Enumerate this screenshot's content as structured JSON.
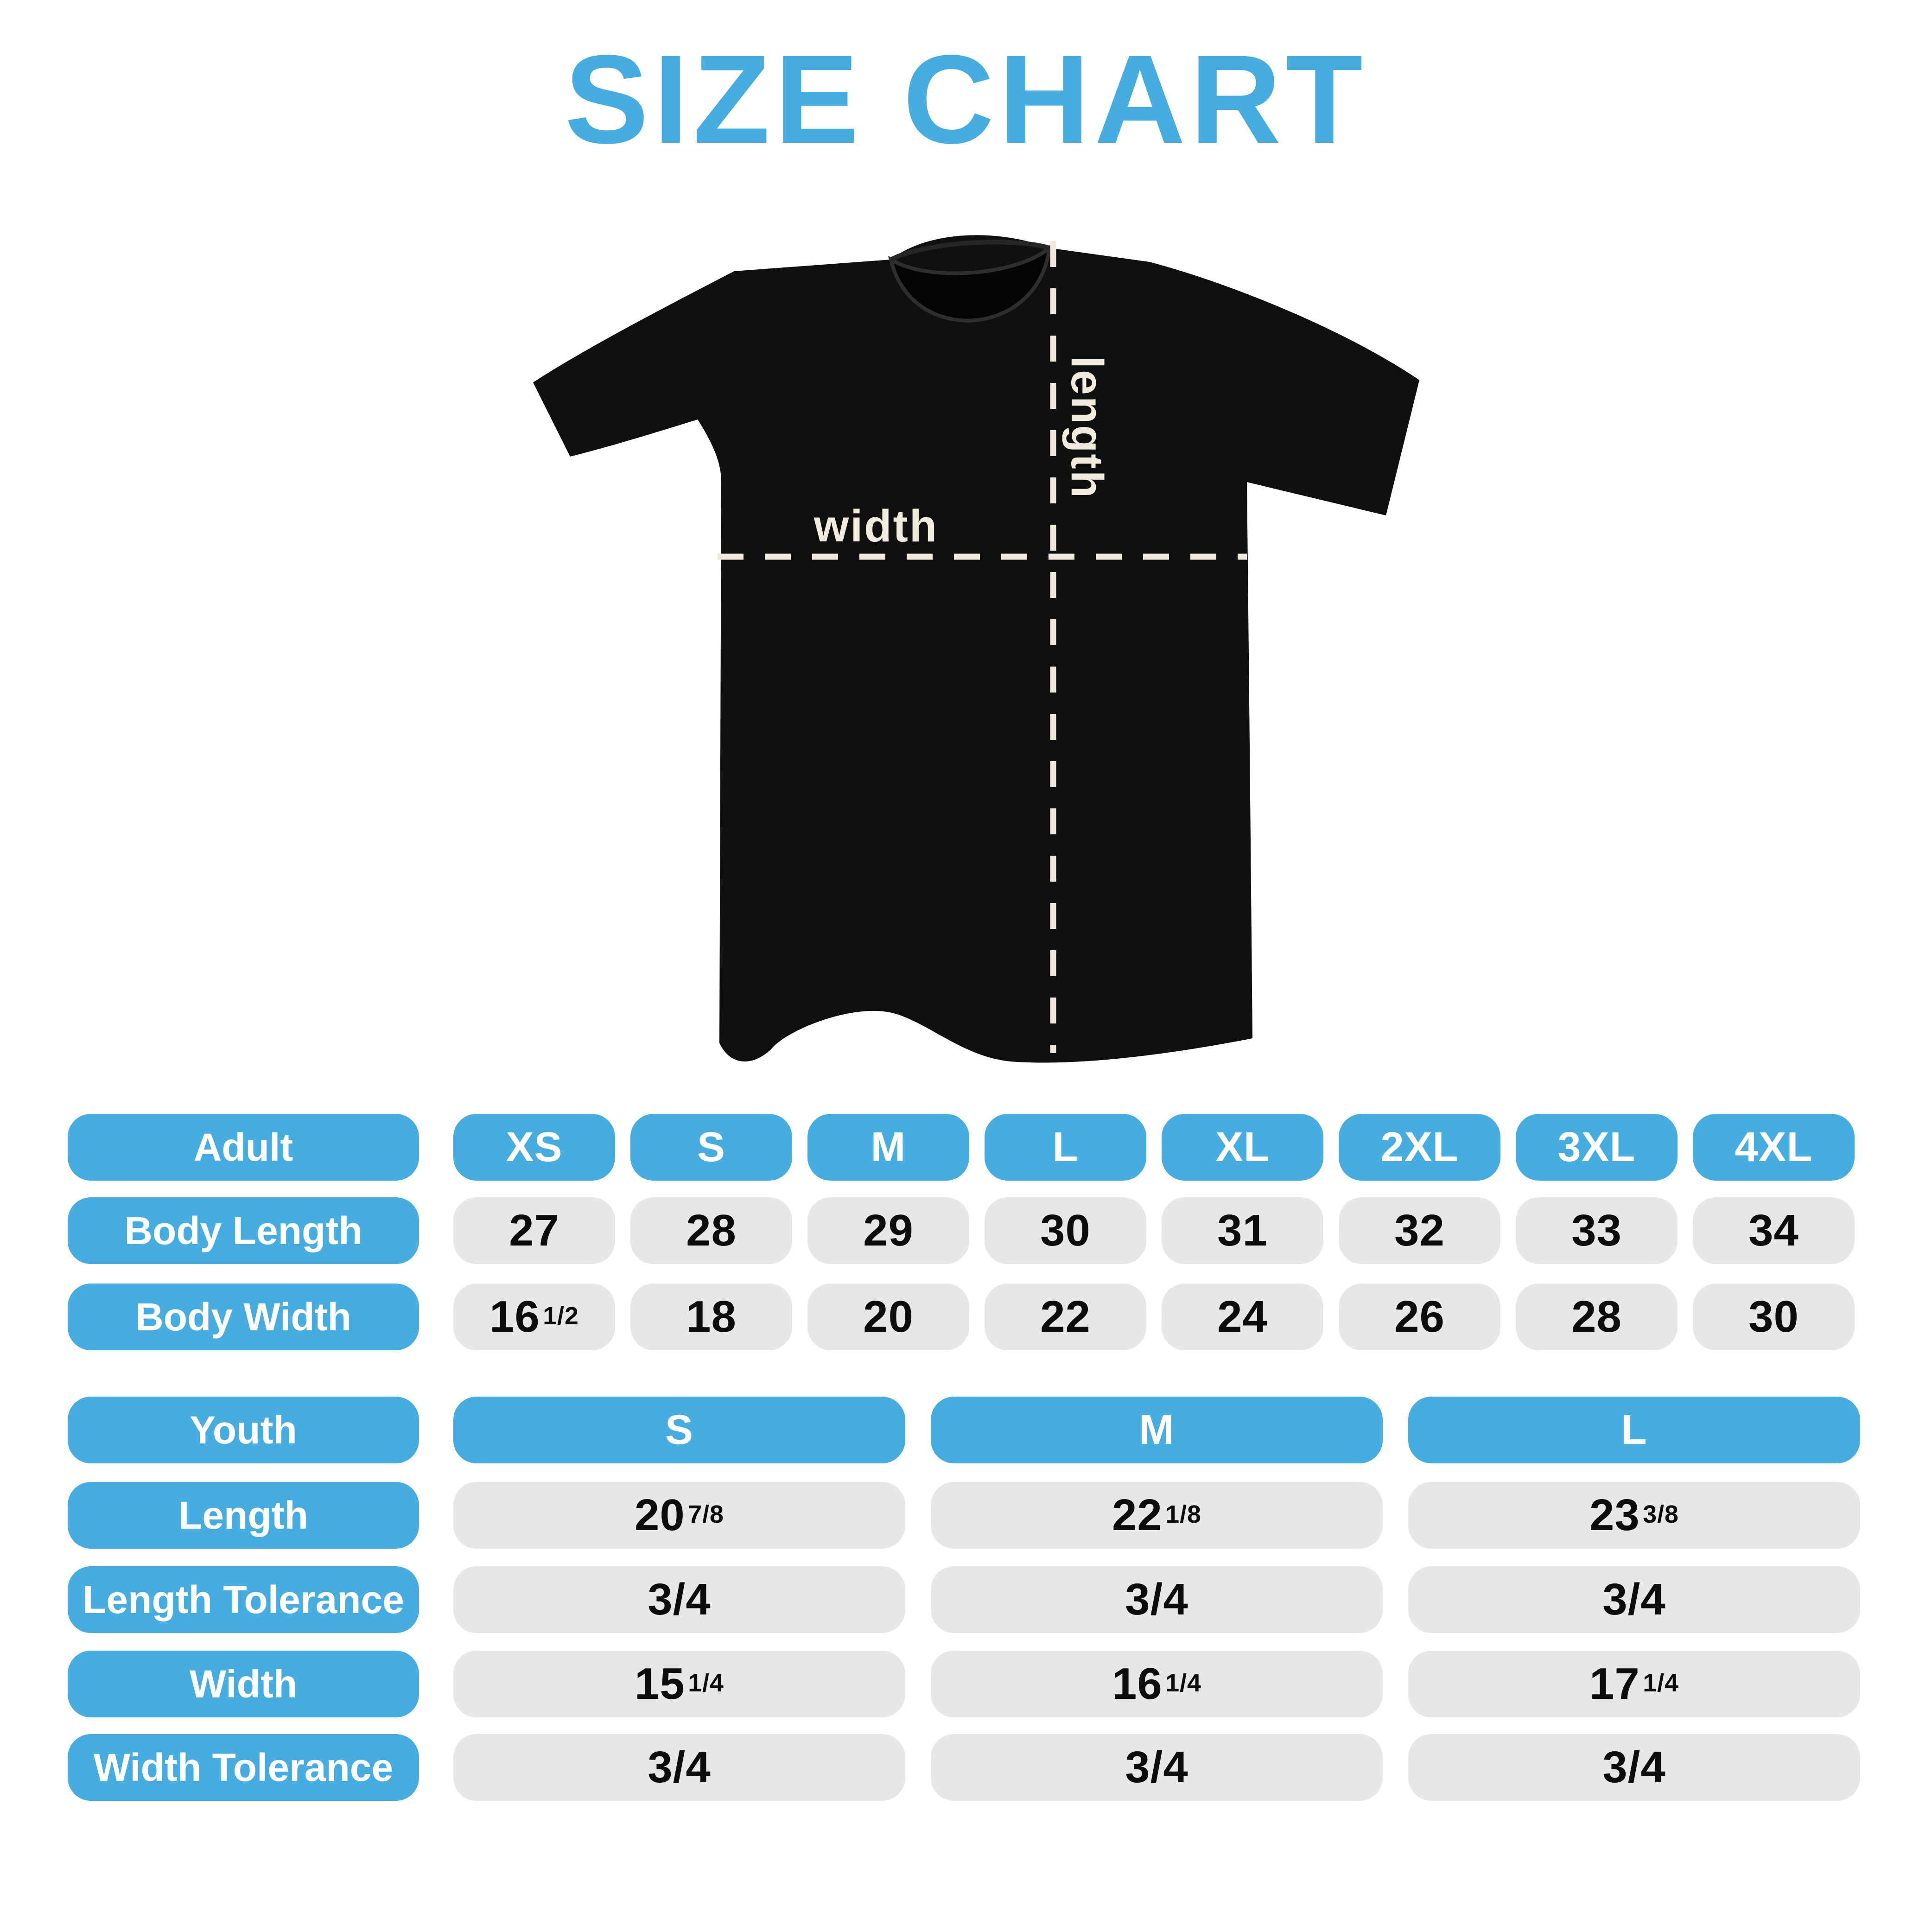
{
  "title": "SIZE CHART",
  "colors": {
    "accent_blue": "#47ACDF",
    "pill_gray": "#E5E7E9",
    "shirt_black": "#101010",
    "measure_cream": "#EFE9DC",
    "number_text": "#0D0D0D",
    "background": "#FFFFFF"
  },
  "diagram": {
    "graphic": "black-tshirt-with-measurement-lines",
    "width_label": "width",
    "length_label": "length"
  },
  "chart_data": [
    {
      "type": "table",
      "title": "Adult",
      "columns": [
        "XS",
        "S",
        "M",
        "L",
        "XL",
        "2XL",
        "3XL",
        "4XL"
      ],
      "rows": [
        {
          "label": "Body Length",
          "values": [
            "27",
            "28",
            "29",
            "30",
            "31",
            "32",
            "33",
            "34"
          ]
        },
        {
          "label": "Body Width",
          "values": [
            "16 1/2",
            "18",
            "20",
            "22",
            "24",
            "26",
            "28",
            "30"
          ]
        }
      ]
    },
    {
      "type": "table",
      "title": "Youth",
      "columns": [
        "S",
        "M",
        "L"
      ],
      "rows": [
        {
          "label": "Length",
          "values": [
            "20 7/8",
            "22 1/8",
            "23 3/8"
          ]
        },
        {
          "label": "Length Tolerance",
          "values": [
            "3/4",
            "3/4",
            "3/4"
          ]
        },
        {
          "label": "Width",
          "values": [
            "15 1/4",
            "16 1/4",
            "17 1/4"
          ]
        },
        {
          "label": "Width Tolerance",
          "values": [
            "3/4",
            "3/4",
            "3/4"
          ]
        }
      ]
    }
  ]
}
